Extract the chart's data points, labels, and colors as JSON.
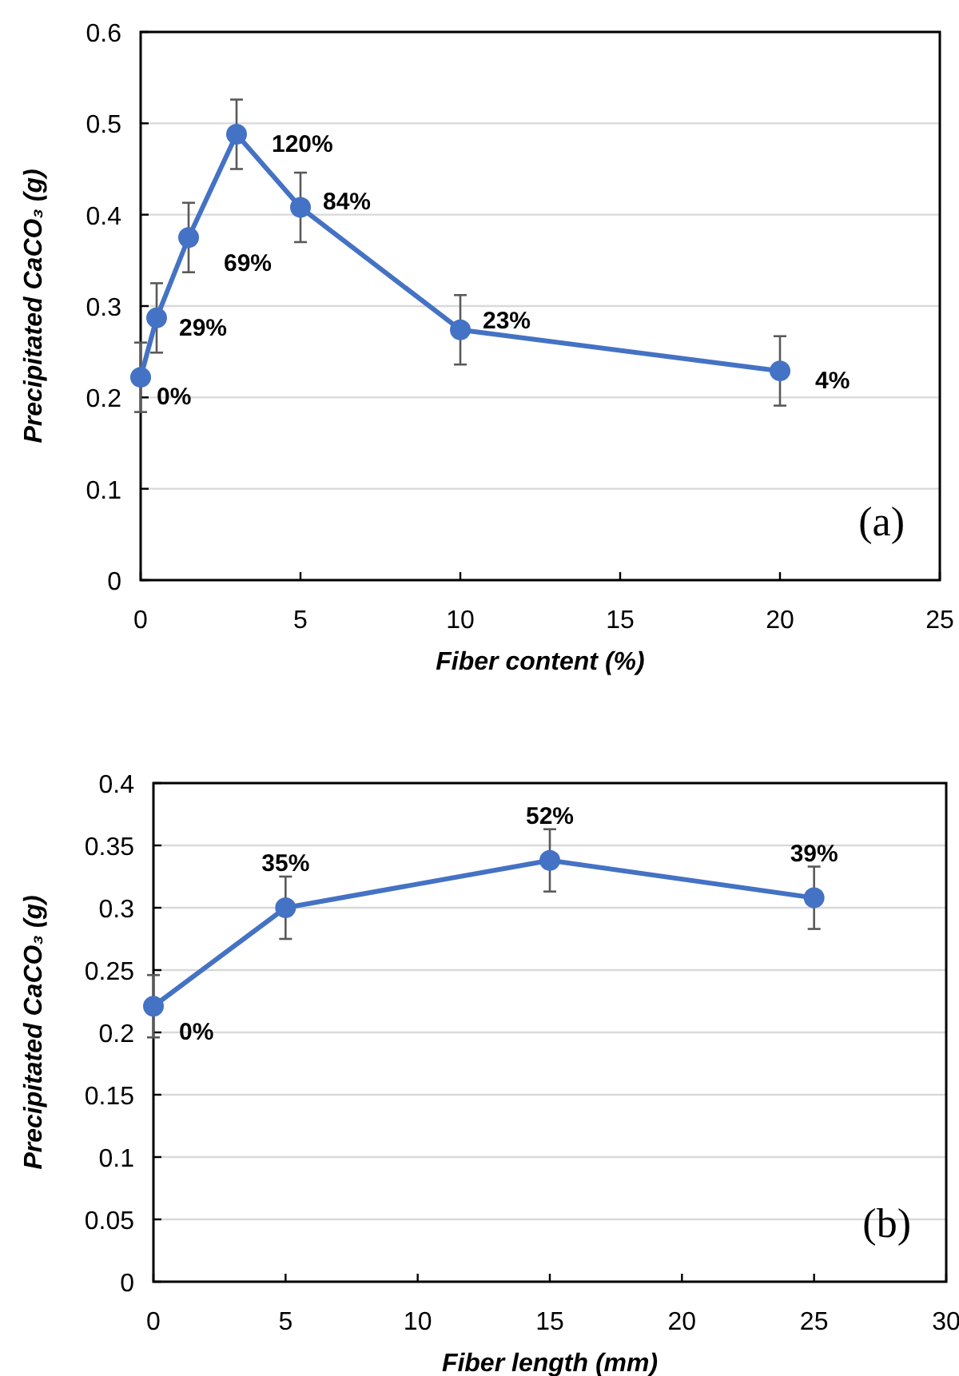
{
  "chart_data": [
    {
      "type": "line",
      "xlabel": "Fiber content (%)",
      "ylabel": "Precipitated CaCO₃ (g)",
      "annotations": [
        {
          "text": "0%",
          "x": 0,
          "y": 0.222
        },
        {
          "text": "29%",
          "x": 0.5,
          "y": 0.287
        },
        {
          "text": "69%",
          "x": 1.5,
          "y": 0.375
        },
        {
          "text": "120%",
          "x": 3,
          "y": 0.488
        },
        {
          "text": "84%",
          "x": 5,
          "y": 0.408
        },
        {
          "text": "23%",
          "x": 10,
          "y": 0.274
        },
        {
          "text": "4%",
          "x": 20,
          "y": 0.229
        },
        "(a)"
      ],
      "x": [
        0,
        0.5,
        1.5,
        3,
        5,
        10,
        20
      ],
      "series": [
        {
          "color": "#4472c4",
          "values": [
            0.222,
            0.287,
            0.375,
            0.488,
            0.408,
            0.274,
            0.229
          ],
          "errors": [
            0.038,
            0.038,
            0.038,
            0.038,
            0.038,
            0.038,
            0.038
          ]
        }
      ],
      "xlim": [
        0,
        25
      ],
      "xticks": [
        0,
        5,
        10,
        15,
        20,
        25
      ],
      "ylim": [
        0,
        0.6
      ],
      "yticks": [
        0,
        0.1,
        0.2,
        0.3,
        0.4,
        0.5,
        0.6
      ],
      "grid": "y",
      "marker": "circle",
      "line_style": "solid"
    },
    {
      "type": "line",
      "xlabel": "Fiber length (mm)",
      "ylabel": "Precipitated CaCO₃ (g)",
      "annotations": [
        {
          "text": "0%",
          "x": 0,
          "y": 0.221
        },
        {
          "text": "35%",
          "x": 5,
          "y": 0.3
        },
        {
          "text": "52%",
          "x": 15,
          "y": 0.338
        },
        {
          "text": "39%",
          "x": 25,
          "y": 0.308
        },
        "(b)"
      ],
      "x": [
        0,
        5,
        15,
        25
      ],
      "series": [
        {
          "color": "#4472c4",
          "values": [
            0.221,
            0.3,
            0.338,
            0.308
          ],
          "errors": [
            0.025,
            0.025,
            0.025,
            0.025
          ]
        }
      ],
      "xlim": [
        0,
        30
      ],
      "xticks": [
        0,
        5,
        10,
        15,
        20,
        25,
        30
      ],
      "ylim": [
        0,
        0.4
      ],
      "yticks": [
        0,
        0.05,
        0.1,
        0.15,
        0.2,
        0.25,
        0.3,
        0.35,
        0.4
      ],
      "grid": "y",
      "marker": "circle",
      "line_style": "solid"
    }
  ]
}
